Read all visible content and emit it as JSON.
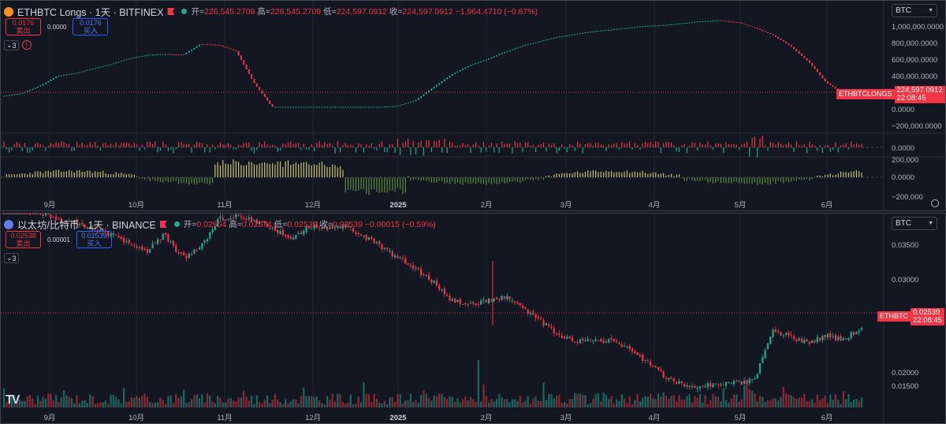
{
  "top_pane": {
    "title": "ETHBTC Longs · 1天 · BITFINEX",
    "ohlc": {
      "open_label": "开",
      "open": "226,545.2709",
      "high_label": "高",
      "high": "226,545.2709",
      "low_label": "低",
      "low": "224,597.0912",
      "close_label": "收",
      "close": "224,597.0912",
      "change": "−1,964.4710 (−0.87%)"
    },
    "sell": {
      "price": "0.0176",
      "label": "卖出"
    },
    "spread": "0.0000",
    "buy": {
      "price": "0.0176",
      "label": "买入"
    },
    "indicator_count": "3",
    "warning_icon": "!",
    "currency": "BTC",
    "price_axis": [
      "1,000,000.0000",
      "800,000.0000",
      "600,000.0000",
      "400,000.0000",
      "0.0000",
      "−200,000.0000"
    ],
    "osc1_axis": [
      "0.0000"
    ],
    "osc2_axis": [
      "200,000",
      "0.0000",
      "−200,000"
    ],
    "last_price_name": "ETHBTCLONGS",
    "last_price": "224,597.0912",
    "countdown": "22:08:45",
    "series_trend": [
      15,
      18,
      26,
      37,
      40,
      45,
      50,
      56,
      60,
      61,
      60,
      72,
      71,
      64,
      29,
      3,
      3,
      3,
      3,
      3,
      3,
      3,
      4,
      10,
      24,
      38,
      48,
      55,
      63,
      70,
      75,
      80,
      83,
      86,
      88,
      90,
      92,
      93,
      95,
      97,
      98,
      96,
      90,
      82,
      70,
      53,
      30,
      17,
      14
    ]
  },
  "bottom_pane": {
    "title": "以太坊/比特币 · 1天 · BINANCE",
    "ohlc": {
      "open_label": "开",
      "open": "0.02554",
      "high_label": "高",
      "high": "0.02574",
      "low_label": "低",
      "low": "0.02539",
      "close_label": "收",
      "close": "0.02539",
      "change": "−0.00015 (−0.59%)"
    },
    "sell": {
      "price": "0.02538",
      "label": "卖出"
    },
    "spread": "0.00001",
    "buy": {
      "price": "0.02539",
      "label": "买入"
    },
    "indicator_count": "3",
    "currency": "BTC",
    "price_axis": [
      "0.03500",
      "0.03000",
      "0.02000",
      "0.01500"
    ],
    "last_price_name": "ETHBTC",
    "last_price": "0.02539",
    "countdown": "22:08:45",
    "series_trend": [
      0.0395,
      0.0392,
      0.0388,
      0.0382,
      0.0376,
      0.0368,
      0.0362,
      0.0352,
      0.0343,
      0.0362,
      0.0335,
      0.0346,
      0.038,
      0.0385,
      0.0378,
      0.0372,
      0.0356,
      0.0372,
      0.0369,
      0.0372,
      0.0362,
      0.035,
      0.0336,
      0.0322,
      0.0308,
      0.0285,
      0.028,
      0.0285,
      0.029,
      0.0276,
      0.0262,
      0.0244,
      0.0236,
      0.0239,
      0.0238,
      0.0228,
      0.0213,
      0.0195,
      0.0186,
      0.0184,
      0.0186,
      0.0188,
      0.0191,
      0.025,
      0.0242,
      0.0236,
      0.0243,
      0.0239,
      0.0254
    ]
  },
  "time_axis": [
    "9月",
    "10月",
    "11月",
    "12月",
    "2025",
    "2月",
    "3月",
    "4月",
    "5月",
    "6月"
  ],
  "colors": {
    "up": "#22ab94",
    "down": "#f23645",
    "bg": "#131722",
    "grid": "#1f2331",
    "osc_up": "#c9c46f",
    "osc_down": "#5b8c3a"
  }
}
